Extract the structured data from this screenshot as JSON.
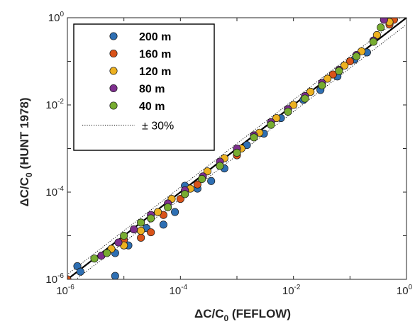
{
  "chart_data": {
    "type": "scatter",
    "xlabel": "ΔC/C0 (FEFLOW)",
    "ylabel": "ΔC/C0 (HUNT 1978)",
    "xscale": "log",
    "yscale": "log",
    "xlim": [
      1e-06,
      1
    ],
    "ylim": [
      1e-06,
      1
    ],
    "grid": false,
    "legend_position": "top-left",
    "x_ticks": [
      {
        "base": "10",
        "exp": "-6",
        "value": 1e-06
      },
      {
        "base": "10",
        "exp": "-4",
        "value": 0.0001
      },
      {
        "base": "10",
        "exp": "-2",
        "value": 0.01
      },
      {
        "base": "10",
        "exp": "0",
        "value": 1
      }
    ],
    "y_ticks": [
      {
        "base": "10",
        "exp": "-6",
        "value": 1e-06
      },
      {
        "base": "10",
        "exp": "-4",
        "value": 0.0001
      },
      {
        "base": "10",
        "exp": "-2",
        "value": 0.01
      },
      {
        "base": "10",
        "exp": "0",
        "value": 1
      }
    ],
    "reference_lines": [
      {
        "kind": "identity",
        "style": "solid",
        "label": ""
      },
      {
        "kind": "band",
        "factor_low": 0.7,
        "factor_high": 1.3,
        "style": "dotted",
        "label": "± 30%"
      }
    ],
    "series": [
      {
        "name": "200 m",
        "color": "#2e6fb3",
        "points": [
          [
            1.5e-06,
            2e-06
          ],
          [
            1.7e-06,
            1.5e-06
          ],
          [
            7e-06,
            1.2e-06
          ],
          [
            7e-06,
            4e-06
          ],
          [
            1.2e-05,
            6e-06
          ],
          [
            2.5e-05,
            1.5e-05
          ],
          [
            5e-05,
            1.8e-05
          ],
          [
            8e-05,
            3.5e-05
          ],
          [
            0.00012,
            0.00014
          ],
          [
            0.0002,
            0.00012
          ],
          [
            0.00035,
            0.00018
          ],
          [
            0.0006,
            0.00035
          ],
          [
            0.0015,
            0.0012
          ],
          [
            0.003,
            0.0022
          ],
          [
            0.006,
            0.005
          ],
          [
            0.015,
            0.013
          ],
          [
            0.03,
            0.022
          ],
          [
            0.06,
            0.045
          ],
          [
            0.12,
            0.11
          ],
          [
            0.2,
            0.16
          ]
        ]
      },
      {
        "name": "160 m",
        "color": "#d95319",
        "points": [
          [
            1e-06,
            1e-06
          ],
          [
            1e-05,
            8e-06
          ],
          [
            2e-05,
            9e-06
          ],
          [
            3e-05,
            1.2e-05
          ],
          [
            5e-05,
            3e-05
          ],
          [
            0.0001,
            7e-05
          ],
          [
            0.0002,
            0.00015
          ],
          [
            0.0005,
            0.0004
          ],
          [
            0.001,
            0.0007
          ],
          [
            0.002,
            0.002
          ],
          [
            0.004,
            0.004
          ],
          [
            0.008,
            0.008
          ],
          [
            0.02,
            0.02
          ],
          [
            0.05,
            0.05
          ],
          [
            0.1,
            0.1
          ],
          [
            0.5,
            0.7
          ],
          [
            0.6,
            0.9
          ]
        ]
      },
      {
        "name": "120 m",
        "color": "#edb120",
        "points": [
          [
            6e-06,
            5e-06
          ],
          [
            1e-05,
            6e-06
          ],
          [
            2e-05,
            1.3e-05
          ],
          [
            4e-05,
            3.5e-05
          ],
          [
            7e-05,
            7e-05
          ],
          [
            0.00015,
            0.00012
          ],
          [
            0.0003,
            0.0003
          ],
          [
            0.0006,
            0.0006
          ],
          [
            0.0012,
            0.001
          ],
          [
            0.0025,
            0.0023
          ],
          [
            0.005,
            0.005
          ],
          [
            0.01,
            0.01
          ],
          [
            0.02,
            0.02
          ],
          [
            0.04,
            0.04
          ],
          [
            0.08,
            0.08
          ],
          [
            0.16,
            0.17
          ],
          [
            0.3,
            0.4
          ],
          [
            0.5,
            0.8
          ]
        ]
      },
      {
        "name": "80 m",
        "color": "#7e2f8e",
        "points": [
          [
            4e-06,
            3.5e-06
          ],
          [
            8e-06,
            7e-06
          ],
          [
            1.5e-05,
            1.4e-05
          ],
          [
            3e-05,
            3e-05
          ],
          [
            6e-05,
            5.5e-05
          ],
          [
            0.00012,
            0.00011
          ],
          [
            0.00025,
            0.00023
          ],
          [
            0.0005,
            0.0005
          ],
          [
            0.001,
            0.001
          ],
          [
            0.002,
            0.002
          ],
          [
            0.004,
            0.004
          ],
          [
            0.008,
            0.008
          ],
          [
            0.016,
            0.016
          ],
          [
            0.032,
            0.032
          ],
          [
            0.064,
            0.064
          ],
          [
            0.13,
            0.14
          ],
          [
            0.26,
            0.3
          ],
          [
            0.4,
            0.9
          ]
        ]
      },
      {
        "name": "40 m",
        "color": "#77ac30",
        "points": [
          [
            3e-06,
            3e-06
          ],
          [
            5e-06,
            4e-06
          ],
          [
            1e-05,
            1e-05
          ],
          [
            2e-05,
            2e-05
          ],
          [
            3e-05,
            2.5e-05
          ],
          [
            6e-05,
            4.5e-05
          ],
          [
            0.00012,
            9e-05
          ],
          [
            0.00024,
            0.0002
          ],
          [
            0.0005,
            0.0004
          ],
          [
            0.001,
            0.0008
          ],
          [
            0.002,
            0.0018
          ],
          [
            0.004,
            0.0035
          ],
          [
            0.008,
            0.007
          ],
          [
            0.016,
            0.014
          ],
          [
            0.032,
            0.028
          ],
          [
            0.064,
            0.06
          ],
          [
            0.13,
            0.13
          ],
          [
            0.26,
            0.28
          ],
          [
            0.35,
            0.6
          ]
        ]
      }
    ]
  }
}
